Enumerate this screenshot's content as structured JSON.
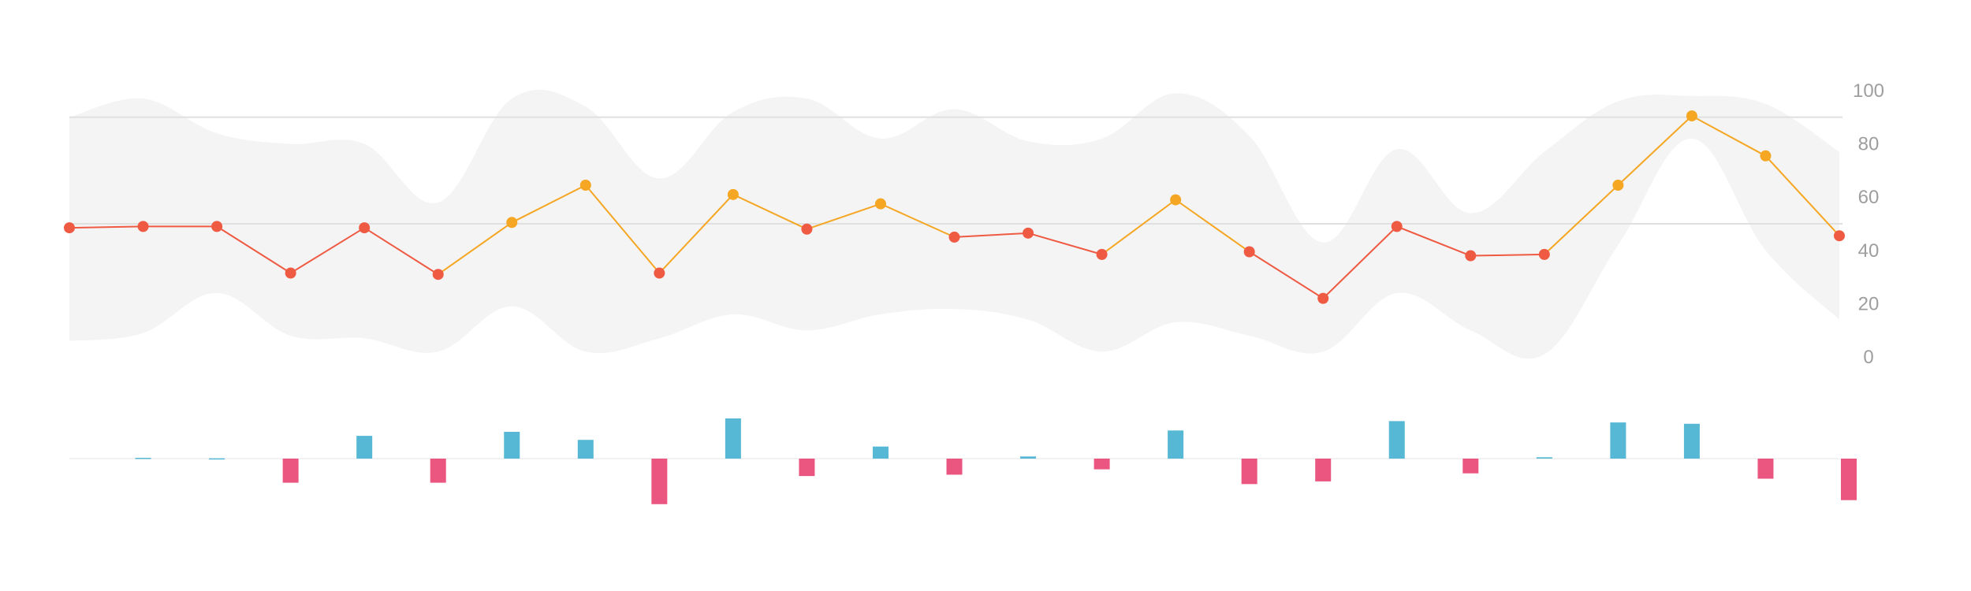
{
  "chart_data": [
    {
      "type": "line",
      "series": [
        {
          "values": [
            48.5,
            49,
            49,
            31.5,
            48.5,
            31,
            50.5,
            64.5,
            31.5,
            61,
            48,
            57.5,
            45,
            46.5,
            38.5,
            59,
            39.5,
            22,
            49,
            38,
            38.5,
            64.5,
            90.5,
            75.5,
            45.5
          ]
        }
      ],
      "band_upper": [
        90,
        97,
        84,
        80,
        80,
        58,
        97,
        94,
        67,
        92,
        97,
        82,
        93,
        81,
        82,
        99,
        83,
        43,
        78,
        54,
        77,
        96,
        98,
        95,
        77
      ],
      "band_lower": [
        6,
        9,
        24,
        8,
        7,
        2,
        19,
        2,
        7,
        16,
        10,
        16,
        18,
        14,
        2,
        13,
        8,
        2,
        24,
        10,
        1,
        42,
        82,
        40,
        14
      ],
      "reference_lines": [
        90,
        50
      ],
      "ylim": [
        0,
        100
      ],
      "yticks": [
        "100",
        "80",
        "60",
        "40",
        "20",
        "0"
      ],
      "colors": {
        "below_line": "#ef5a43",
        "above_line": "#f5a623",
        "band": "#f4f4f4",
        "reference": "#e0e0e0"
      },
      "threshold": 50
    },
    {
      "type": "bar",
      "values": [
        0,
        0.3,
        0.1,
        -9,
        8.5,
        -9,
        10,
        7,
        -17,
        15,
        -6.5,
        4.5,
        -6,
        0.8,
        -4,
        10.5,
        -9.5,
        -8.5,
        14,
        -5.5,
        0.5,
        13.5,
        13,
        -7.5,
        -15.5
      ],
      "colors": {
        "positive": "#56b8d4",
        "negative": "#ea5680",
        "baseline": "#eeeeee"
      }
    }
  ]
}
